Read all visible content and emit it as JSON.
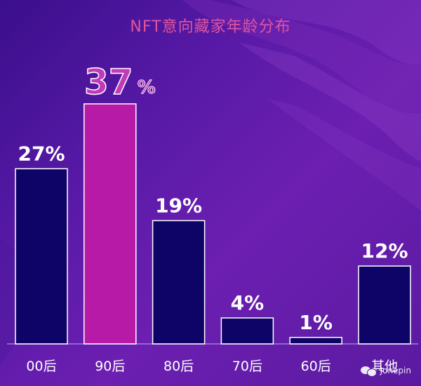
{
  "chart_data": {
    "type": "bar",
    "title": "NFT意向藏家年龄分布",
    "categories": [
      "00后",
      "90后",
      "80后",
      "70后",
      "60后",
      "其他"
    ],
    "values": [
      27,
      37,
      19,
      4,
      1,
      12
    ],
    "value_labels": [
      "27%",
      "37",
      "19%",
      "4%",
      "1%",
      "12%"
    ],
    "highlight_unit": "%",
    "highlight_index": 1,
    "ylim": [
      0,
      37
    ],
    "xlabel": "",
    "ylabel": "",
    "grid": false,
    "legend": "none",
    "colors": {
      "bar": "#0e0468",
      "bar_highlight": "#b81aa8",
      "highlight_label": "#c13aba",
      "bar_outline": "#ffffff",
      "label": "#ffffff",
      "title": "#e0559f",
      "axis": "#9c7ed8"
    }
  },
  "watermark": {
    "icon": "wechat-icon",
    "text": "Jonepin"
  }
}
